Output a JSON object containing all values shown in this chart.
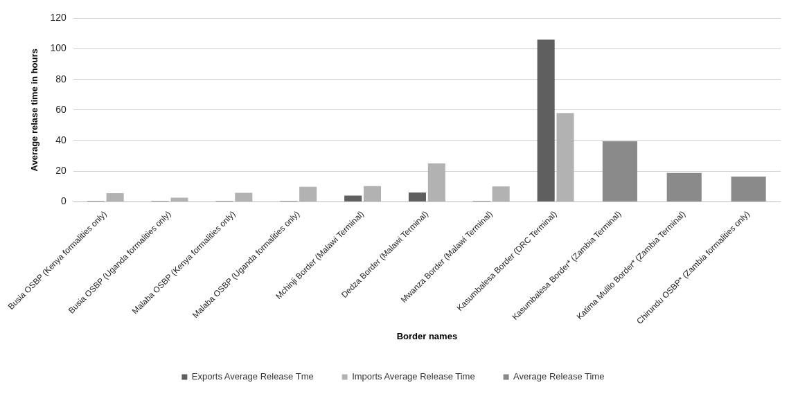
{
  "chart_data": {
    "type": "bar",
    "xlabel": "Border names",
    "ylabel": "Average relase time in hours",
    "categories": [
      "Busia OSBP (Kenya formalities only)",
      "Busia OSBP (Uganda formalities only)",
      "Malaba OSBP (Kenya formalities only)",
      "Malaba OSBP (Uganda formalities only)",
      "Mchinji Border (Malawi Terminal)",
      "Dedza Border (Malawi Terminal)",
      "Mwanza Border (Malawi Terminal)",
      "Kasumbalesa Border (DRC Terminal)",
      "Kasumbalesa Border* (Zambia Terminal)",
      "Katima Mulilo Border* (Zambia Terminal)",
      "Chirundu OSBP* (Zambia formalities only)"
    ],
    "series": [
      {
        "name": "Exports Average Release Tme",
        "color": "#5f5f5f",
        "values": [
          0.5,
          0.5,
          0.5,
          0.5,
          4,
          6,
          0.5,
          106,
          null,
          null,
          null
        ]
      },
      {
        "name": "Imports Average Release Time",
        "color": "#b2b2b2",
        "values": [
          5.6,
          2.6,
          5.8,
          9.8,
          10.2,
          25,
          10,
          58,
          null,
          null,
          null
        ]
      },
      {
        "name": "Average Release Time",
        "color": "#8a8a8a",
        "values": [
          null,
          null,
          null,
          null,
          null,
          null,
          null,
          null,
          39.5,
          18.8,
          16.4
        ]
      }
    ],
    "ylim": [
      0,
      120
    ],
    "yticks": [
      0,
      20,
      40,
      60,
      80,
      100,
      120
    ],
    "grid": "y",
    "legend": "bottom"
  }
}
